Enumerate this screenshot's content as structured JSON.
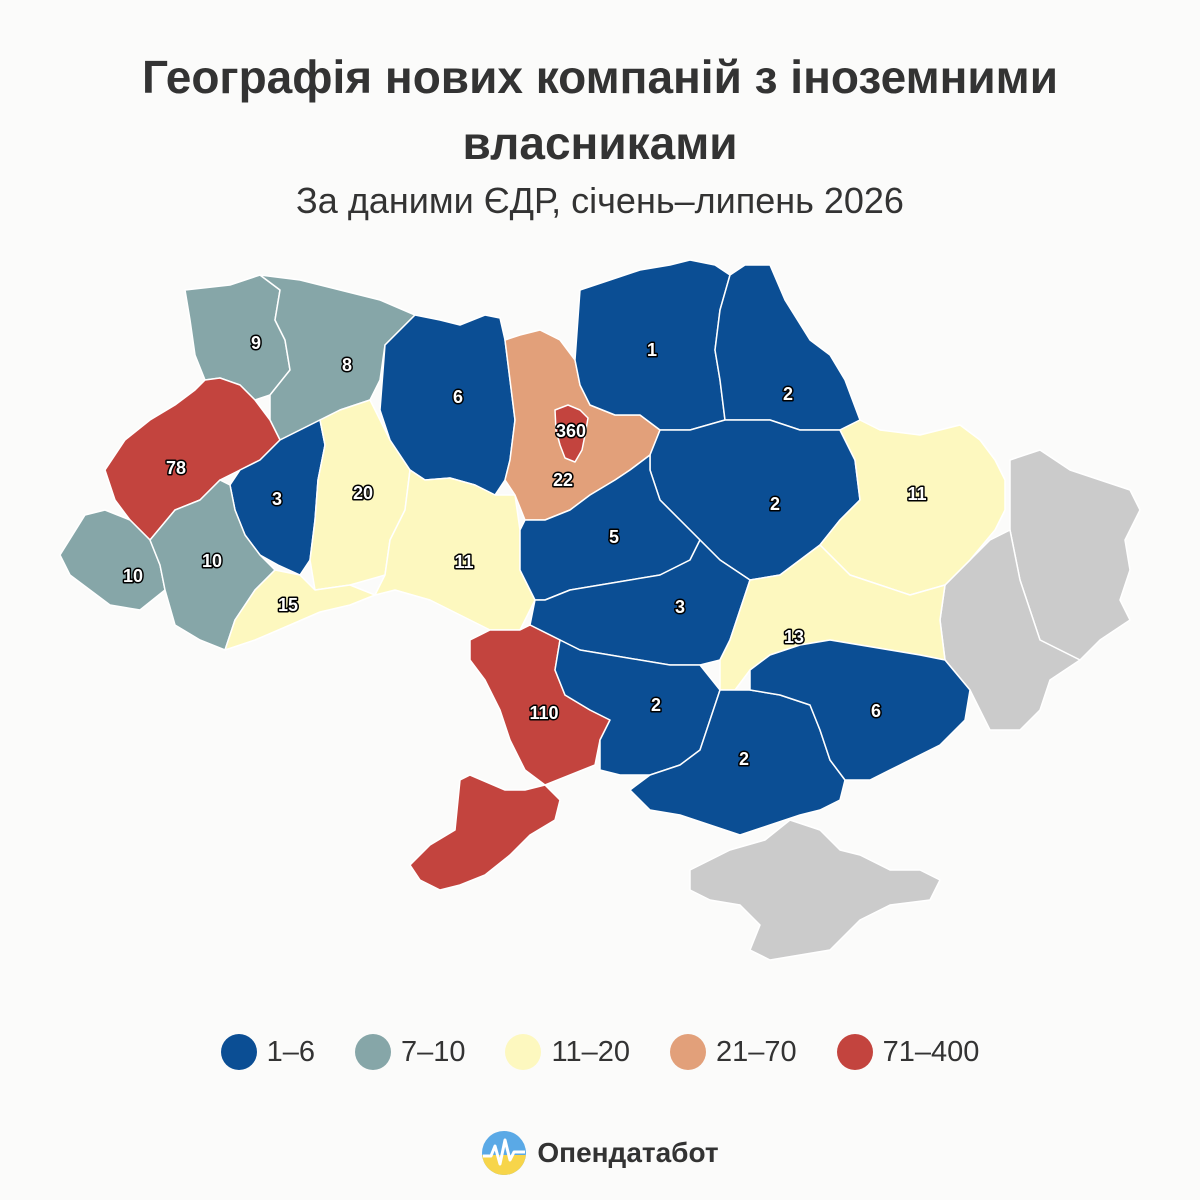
{
  "title": "Географія нових компаній з іноземними власниками",
  "subtitle": "За даними ЄДР, січень–липень 2026",
  "legend": [
    {
      "label": "1–6",
      "color": "#0b4e94"
    },
    {
      "label": "7–10",
      "color": "#86a6a8"
    },
    {
      "label": "11–20",
      "color": "#fdf8bf"
    },
    {
      "label": "21–70",
      "color": "#e2a07a"
    },
    {
      "label": "71–400",
      "color": "#c3443e"
    }
  ],
  "occupied_color": "#cbcbcb",
  "regions": [
    {
      "id": "volyn",
      "value": "9",
      "bin": 1
    },
    {
      "id": "rivne",
      "value": "8",
      "bin": 1
    },
    {
      "id": "lviv",
      "value": "78",
      "bin": 4
    },
    {
      "id": "ternopil",
      "value": "3",
      "bin": 0
    },
    {
      "id": "khmelnytskyi",
      "value": "20",
      "bin": 2
    },
    {
      "id": "zakarpattia",
      "value": "10",
      "bin": 1
    },
    {
      "id": "ivano-frankivsk",
      "value": "10",
      "bin": 1
    },
    {
      "id": "chernivtsi",
      "value": "15",
      "bin": 2
    },
    {
      "id": "zhytomyr",
      "value": "6",
      "bin": 0
    },
    {
      "id": "vinnytsia",
      "value": "11",
      "bin": 2
    },
    {
      "id": "kyiv-oblast",
      "value": "22",
      "bin": 3
    },
    {
      "id": "kyiv-city",
      "value": "360",
      "bin": 4
    },
    {
      "id": "chernihiv",
      "value": "1",
      "bin": 0
    },
    {
      "id": "sumy",
      "value": "2",
      "bin": 0
    },
    {
      "id": "poltava",
      "value": "2",
      "bin": 0
    },
    {
      "id": "kharkiv",
      "value": "11",
      "bin": 2
    },
    {
      "id": "cherkasy",
      "value": "5",
      "bin": 0
    },
    {
      "id": "kirovohrad",
      "value": "3",
      "bin": 0
    },
    {
      "id": "dnipro",
      "value": "13",
      "bin": 2
    },
    {
      "id": "odesa-north",
      "value": "110",
      "bin": 4
    },
    {
      "id": "odesa-south",
      "value": "",
      "bin": 4
    },
    {
      "id": "mykolaiv",
      "value": "2",
      "bin": 0
    },
    {
      "id": "kherson",
      "value": "2",
      "bin": 0
    },
    {
      "id": "zaporizhzhia",
      "value": "6",
      "bin": 0
    }
  ],
  "brand": {
    "name": "Опендатабот"
  }
}
